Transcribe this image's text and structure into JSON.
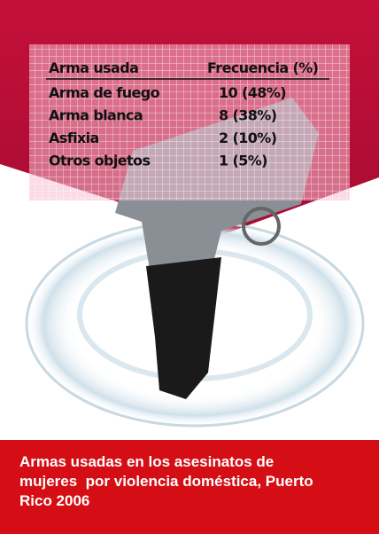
{
  "table": {
    "header": [
      "Arma usada",
      "Frecuencia (%)"
    ],
    "rows": [
      [
        "Arma de fuego",
        "10 (48%)"
      ],
      [
        "Arma blanca",
        "8 (38%)"
      ],
      [
        "Asfixia",
        "2 (10%)"
      ],
      [
        "Otros objetos",
        "1 (5%)"
      ]
    ]
  },
  "caption": "Armas usadas en los asesinatos de mujeres  por violencia doméstica, Puerto Rico 2006"
}
